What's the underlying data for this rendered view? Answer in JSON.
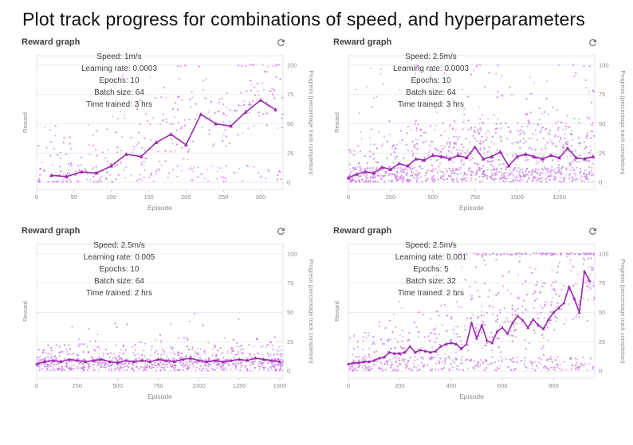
{
  "page": {
    "title": "Plot track progress for combinations of speed, and hyperparameters"
  },
  "colors": {
    "line": "#9C27B0",
    "scatter": "#C77CE0",
    "grid": "#ececf2",
    "border": "#e3e3ef",
    "axis_text": "#8b8b95",
    "tick_mark": "#cfcfdd",
    "title_text": "#3c4043",
    "annotation_text": "#3d3d3d",
    "refresh_icon": "#5f6368"
  },
  "icons": {
    "refresh": "circular-arrow-refresh"
  },
  "chart_data": [
    {
      "type": "scatter+line",
      "title": "Reward graph",
      "annotation": [
        "Speed: 1m/s",
        "Learning rate: 0.0003",
        "Epochs: 10",
        "Batch size: 64",
        "Time trained: 3 hrs"
      ],
      "xlabel": "Episode",
      "ylabel_left": "Reward",
      "ylabel_right": "Progress (percentage track completion)",
      "xlim": [
        0,
        330
      ],
      "ylim": [
        0,
        100
      ],
      "xticks": [
        0,
        50,
        100,
        150,
        200,
        250,
        300
      ],
      "yticks": [
        0,
        25,
        50,
        75,
        100
      ],
      "legend": "none",
      "grid": "horizontal",
      "line": {
        "x": [
          20,
          40,
          60,
          80,
          100,
          120,
          140,
          160,
          180,
          200,
          220,
          240,
          260,
          280,
          300,
          320
        ],
        "y": [
          6,
          5,
          9,
          8,
          14,
          24,
          22,
          34,
          41,
          32,
          58,
          50,
          48,
          60,
          70,
          62
        ]
      },
      "scatter_spec": {
        "seed": 11,
        "count": 340,
        "spread": 62,
        "low_band": {
          "frac": 0.3,
          "ymax": 14
        },
        "extra_high": {
          "count": 28,
          "ymin": 40,
          "ymax": 100,
          "xmin_frac": 0.3
        },
        "top_row": {
          "count": 12,
          "xmin_frac": 0.45
        }
      }
    },
    {
      "type": "scatter+line",
      "title": "Reward graph",
      "annotation": [
        "Speed: 2.5m/s",
        "Learning rate: 0.0003",
        "Epochs: 10",
        "Batch size: 64",
        "Time trained: 3 hrs"
      ],
      "xlabel": "Episode",
      "ylabel_left": "Reward",
      "ylabel_right": "Progress (percentage track completion)",
      "xlim": [
        0,
        1460
      ],
      "ylim": [
        0,
        100
      ],
      "xticks": [
        0,
        250,
        500,
        750,
        1000,
        1250
      ],
      "yticks": [
        0,
        25,
        50,
        75,
        100
      ],
      "legend": "none",
      "grid": "horizontal",
      "line": {
        "x": [
          0,
          50,
          100,
          150,
          200,
          250,
          300,
          350,
          400,
          450,
          500,
          550,
          600,
          650,
          700,
          750,
          800,
          850,
          900,
          950,
          1000,
          1050,
          1100,
          1150,
          1200,
          1250,
          1300,
          1350,
          1400,
          1450
        ],
        "y": [
          4,
          7,
          9,
          8,
          13,
          11,
          16,
          14,
          20,
          19,
          23,
          22,
          20,
          23,
          21,
          30,
          20,
          22,
          26,
          14,
          22,
          24,
          22,
          20,
          23,
          21,
          29,
          21,
          20,
          22
        ]
      },
      "scatter_spec": {
        "seed": 22,
        "count": 950,
        "spread": 48,
        "low_band": {
          "frac": 0.45,
          "ymax": 12
        },
        "extra_high": {
          "count": 90,
          "ymin": 30,
          "ymax": 100,
          "xmin_frac": 0.03
        },
        "top_row": {
          "count": 10,
          "xmin_frac": 0.15
        }
      }
    },
    {
      "type": "scatter+line",
      "title": "Reward graph",
      "annotation": [
        "Speed: 2.5m/s",
        "Learning rate: 0.005",
        "Epochs: 10",
        "Batch size: 64",
        "Time trained: 2 hrs"
      ],
      "xlabel": "Episode",
      "ylabel_left": "Reward",
      "ylabel_right": "Progress (percentage track completion)",
      "xlim": [
        0,
        1520
      ],
      "ylim": [
        0,
        100
      ],
      "xticks": [
        0,
        250,
        500,
        750,
        1000,
        1250,
        1500
      ],
      "yticks": [
        0,
        25,
        50,
        75,
        100
      ],
      "legend": "none",
      "grid": "horizontal",
      "line": {
        "x": [
          0,
          50,
          100,
          150,
          200,
          250,
          300,
          350,
          400,
          450,
          500,
          550,
          600,
          650,
          700,
          750,
          800,
          850,
          900,
          950,
          1000,
          1050,
          1100,
          1150,
          1200,
          1250,
          1300,
          1350,
          1400,
          1450,
          1500
        ],
        "y": [
          6,
          8,
          9,
          8,
          10,
          9,
          8,
          9,
          10,
          8,
          7,
          9,
          8,
          9,
          8,
          10,
          9,
          8,
          10,
          11,
          9,
          8,
          9,
          8,
          9,
          10,
          9,
          11,
          10,
          9,
          8
        ]
      },
      "scatter_spec": {
        "seed": 33,
        "count": 830,
        "spread": 24,
        "low_band": {
          "frac": 0.5,
          "ymax": 10
        },
        "extra_high": {
          "count": 16,
          "ymin": 22,
          "ymax": 55,
          "xmin_frac": 0.03
        },
        "top_row": {
          "count": 0,
          "xmin_frac": 0
        }
      }
    },
    {
      "type": "scatter+line",
      "title": "Reward graph",
      "annotation": [
        "Speed: 2.5m/s",
        "Learning rate: 0.001",
        "Epochs: 5",
        "Batch size: 32",
        "Time trained: 2 hrs"
      ],
      "xlabel": "Episode",
      "ylabel_left": "Reward",
      "ylabel_right": "Progress (percentage track completion)",
      "xlim": [
        0,
        960
      ],
      "ylim": [
        0,
        100
      ],
      "xticks": [
        0,
        200,
        400,
        600,
        800
      ],
      "yticks": [
        0,
        25,
        50,
        75,
        100
      ],
      "legend": "none",
      "grid": "horizontal",
      "line": {
        "x": [
          0,
          20,
          40,
          60,
          80,
          100,
          120,
          140,
          160,
          180,
          200,
          220,
          240,
          260,
          280,
          300,
          320,
          340,
          360,
          380,
          400,
          420,
          440,
          460,
          480,
          500,
          520,
          540,
          560,
          580,
          600,
          620,
          640,
          660,
          680,
          700,
          720,
          740,
          760,
          780,
          800,
          820,
          840,
          860,
          880,
          900,
          920,
          940
        ],
        "y": [
          6,
          7,
          7,
          8,
          8,
          9,
          11,
          12,
          16,
          15,
          15,
          16,
          21,
          16,
          18,
          17,
          16,
          17,
          21,
          23,
          24,
          23,
          19,
          23,
          41,
          28,
          39,
          26,
          24,
          34,
          37,
          32,
          41,
          47,
          43,
          37,
          44,
          39,
          36,
          44,
          50,
          54,
          58,
          72,
          62,
          50,
          85,
          77
        ]
      },
      "scatter_spec": {
        "seed": 44,
        "count": 640,
        "spread": 56,
        "low_band": {
          "frac": 0.4,
          "ymax": 12
        },
        "extra_high": {
          "count": 55,
          "ymin": 40,
          "ymax": 100,
          "xmin_frac": 0.35
        },
        "top_row": {
          "count": 80,
          "xmin_frac": 0.36
        }
      }
    }
  ]
}
